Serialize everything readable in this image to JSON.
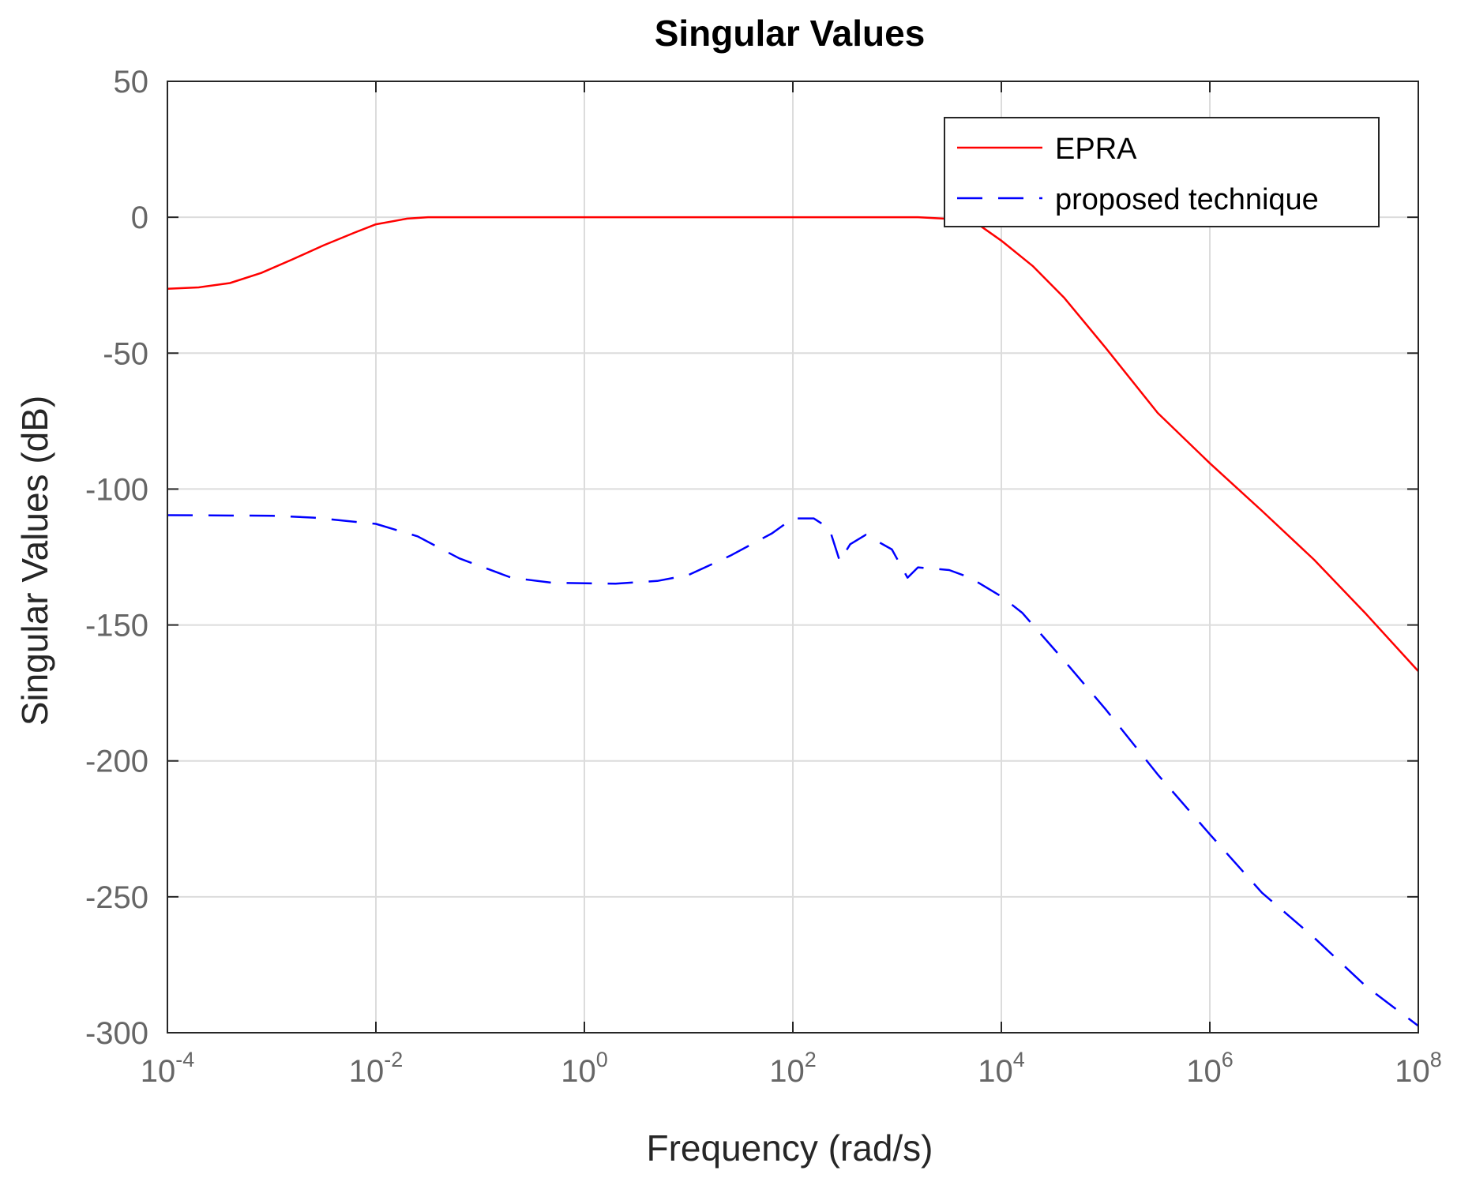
{
  "chart_data": {
    "type": "line",
    "title": "Singular Values",
    "xlabel": "Frequency (rad/s)",
    "ylabel": "Singular Values (dB)",
    "xscale": "log",
    "xlim_exponent": [
      -4,
      8
    ],
    "ylim": [
      -300,
      50
    ],
    "x_ticks": [
      {
        "base": "10",
        "exp": "-4"
      },
      {
        "base": "10",
        "exp": "-2"
      },
      {
        "base": "10",
        "exp": "0"
      },
      {
        "base": "10",
        "exp": "2"
      },
      {
        "base": "10",
        "exp": "4"
      },
      {
        "base": "10",
        "exp": "6"
      },
      {
        "base": "10",
        "exp": "8"
      }
    ],
    "y_ticks": [
      "50",
      "0",
      "-50",
      "-100",
      "-150",
      "-200",
      "-250",
      "-300"
    ],
    "grid": true,
    "legend": {
      "position": "top-right",
      "entries": [
        "EPRA",
        "proposed technique"
      ]
    },
    "series": [
      {
        "name": "EPRA",
        "color": "#ff0000",
        "style": "solid",
        "points": [
          [
            -4,
            -26.3
          ],
          [
            -3.7,
            -25.8
          ],
          [
            -3.4,
            -24.2
          ],
          [
            -3.1,
            -20.5
          ],
          [
            -2.8,
            -15.5
          ],
          [
            -2.5,
            -10.3
          ],
          [
            -2.2,
            -5.6
          ],
          [
            -2.0,
            -2.6
          ],
          [
            -1.7,
            -0.5
          ],
          [
            -1.5,
            0
          ],
          [
            0,
            0
          ],
          [
            2,
            0
          ],
          [
            3.2,
            0
          ],
          [
            3.5,
            -0.6
          ],
          [
            3.8,
            -3.2
          ],
          [
            4.0,
            -8.6
          ],
          [
            4.3,
            -17.9
          ],
          [
            4.6,
            -29.5
          ],
          [
            5.0,
            -48
          ],
          [
            5.5,
            -72
          ],
          [
            6.0,
            -90.5
          ],
          [
            6.5,
            -108
          ],
          [
            7.0,
            -126
          ],
          [
            7.5,
            -146
          ],
          [
            8.0,
            -167
          ]
        ]
      },
      {
        "name": "proposed technique",
        "color": "#0000ff",
        "style": "dashed",
        "points": [
          [
            -4,
            -109.6
          ],
          [
            -3.0,
            -109.8
          ],
          [
            -2.6,
            -110.5
          ],
          [
            -2.0,
            -112.8
          ],
          [
            -1.6,
            -117.4
          ],
          [
            -1.2,
            -125.5
          ],
          [
            -0.7,
            -132.6
          ],
          [
            -0.3,
            -134.5
          ],
          [
            0.3,
            -134.8
          ],
          [
            0.7,
            -133.8
          ],
          [
            1.0,
            -131.6
          ],
          [
            1.4,
            -124.5
          ],
          [
            1.8,
            -116.3
          ],
          [
            2.0,
            -110.8
          ],
          [
            2.2,
            -110.8
          ],
          [
            2.35,
            -114.5
          ],
          [
            2.45,
            -126.5
          ],
          [
            2.55,
            -120.3
          ],
          [
            2.7,
            -116.8
          ],
          [
            2.95,
            -122.2
          ],
          [
            3.1,
            -132.6
          ],
          [
            3.2,
            -128.8
          ],
          [
            3.5,
            -129.8
          ],
          [
            3.7,
            -132.6
          ],
          [
            4.0,
            -139.5
          ],
          [
            4.2,
            -145.5
          ],
          [
            4.6,
            -163
          ],
          [
            5.0,
            -181
          ],
          [
            5.5,
            -205
          ],
          [
            6.0,
            -227
          ],
          [
            6.5,
            -248.5
          ],
          [
            7.0,
            -265
          ],
          [
            7.5,
            -283
          ],
          [
            8.0,
            -297.5
          ]
        ]
      }
    ]
  }
}
